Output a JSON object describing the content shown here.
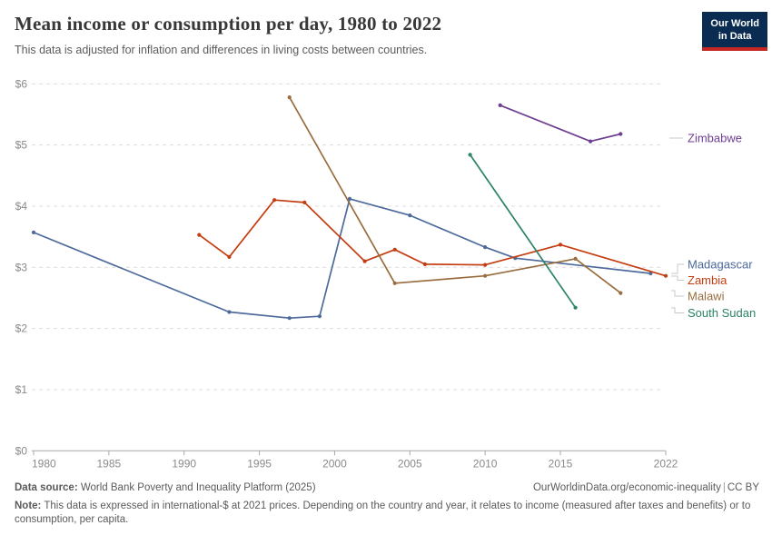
{
  "header": {
    "title": "Mean income or consumption per day, 1980 to 2022",
    "subtitle": "This data is adjusted for inflation and differences in living costs between countries.",
    "logo": {
      "line1": "Our World",
      "line2": "in Data"
    }
  },
  "chart_data": {
    "type": "line",
    "title": "Mean income or consumption per day, 1980 to 2022",
    "unit": "international-$ at 2021 prices, per day",
    "legend_position": "right",
    "x_axis": {
      "tick_labels": [
        "1980",
        "1985",
        "1990",
        "1995",
        "2000",
        "2005",
        "2010",
        "2015",
        "2022"
      ],
      "range": [
        1980,
        2022
      ]
    },
    "y_axis": {
      "tick_labels": [
        "$0",
        "$1",
        "$2",
        "$3",
        "$4",
        "$5",
        "$6"
      ],
      "tick_values": [
        0,
        1,
        2,
        3,
        4,
        5,
        6
      ],
      "range": [
        0,
        6
      ],
      "grid": "dashed"
    },
    "series": [
      {
        "name": "Madagascar",
        "color": "#4C6A9C",
        "points": [
          [
            1980,
            3.57
          ],
          [
            1993,
            2.27
          ],
          [
            1997,
            2.17
          ],
          [
            1999,
            2.2
          ],
          [
            2001,
            4.12
          ],
          [
            2005,
            3.85
          ],
          [
            2010,
            3.33
          ],
          [
            2012,
            3.15
          ],
          [
            2021,
            2.9
          ]
        ]
      },
      {
        "name": "Zambia",
        "color": "#C43D11",
        "points": [
          [
            1991,
            3.53
          ],
          [
            1993,
            3.17
          ],
          [
            1996,
            4.1
          ],
          [
            1998,
            4.06
          ],
          [
            2002,
            3.1
          ],
          [
            2004,
            3.29
          ],
          [
            2006,
            3.05
          ],
          [
            2010,
            3.04
          ],
          [
            2015,
            3.37
          ],
          [
            2022,
            2.86
          ]
        ]
      },
      {
        "name": "Malawi",
        "color": "#996D3F",
        "points": [
          [
            1997,
            5.78
          ],
          [
            2004,
            2.74
          ],
          [
            2010,
            2.86
          ],
          [
            2016,
            3.14
          ],
          [
            2019,
            2.58
          ]
        ]
      },
      {
        "name": "Zimbabwe",
        "color": "#6D3E91",
        "points": [
          [
            2011,
            5.65
          ],
          [
            2017,
            5.06
          ],
          [
            2019,
            5.18
          ]
        ]
      },
      {
        "name": "South Sudan",
        "color": "#2A8465",
        "points": [
          [
            2009,
            4.84
          ],
          [
            2016,
            2.34
          ]
        ]
      }
    ]
  },
  "footer": {
    "source_label": "Data source:",
    "source_text": " World Bank Poverty and Inequality Platform (2025)",
    "link_text": "OurWorldinData.org/economic-inequality",
    "separator": "|",
    "license_text": "CC BY",
    "note_label": "Note:",
    "note_text": " This data is expressed in international-$ at 2021 prices. Depending on the country and year, it relates to income (measured after taxes and benefits) or to consumption, per capita."
  }
}
